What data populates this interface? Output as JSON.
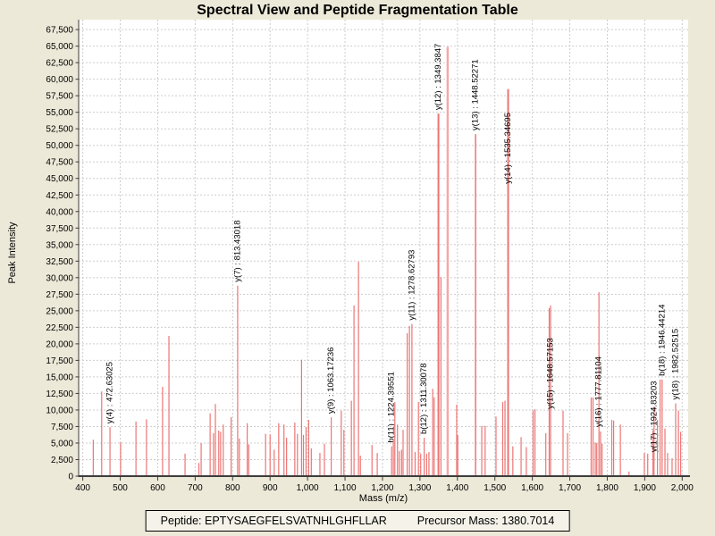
{
  "title": "Spectral View and Peptide Fragmentation Table",
  "colors": {
    "page_background": "#ece9d8",
    "plot_background": "#ffffff",
    "grid": "#cdcdcd",
    "axis": "#3c3c3c",
    "peak_default": "#ec7575",
    "peak_light": "#f5a8a8"
  },
  "footer": {
    "peptide": "Peptide: EPTYSAEGFELSVATNHLGHFLLAR",
    "precursor_mass": "Precursor Mass: 1380.7014"
  },
  "chart_data": {
    "type": "bar",
    "title": "Spectral View and Peptide Fragmentation Table",
    "xlabel": "Mass (m/z)",
    "ylabel": "Peak Intensity",
    "xlim": [
      389,
      2016
    ],
    "ylim": [
      0,
      69000
    ],
    "x_tick_min": 400,
    "x_tick_max": 2000,
    "x_tick_step": 100,
    "y_tick_min": 0,
    "y_tick_max": 67500,
    "y_tick_step": 2500,
    "grid": true,
    "legend": "none",
    "peaks": [
      {
        "mz": 428,
        "i": 5500
      },
      {
        "mz": 450.5,
        "i": 12800
      },
      {
        "mz": 472.63025,
        "i": 7400,
        "label": "y(4) : 472.63025"
      },
      {
        "mz": 501,
        "i": 5100
      },
      {
        "mz": 542,
        "i": 8250
      },
      {
        "mz": 570,
        "i": 8600
      },
      {
        "mz": 613,
        "i": 13500
      },
      {
        "mz": 630,
        "i": 21200
      },
      {
        "mz": 673,
        "i": 3400
      },
      {
        "mz": 710,
        "i": 2000
      },
      {
        "mz": 716,
        "i": 5000
      },
      {
        "mz": 740,
        "i": 9500
      },
      {
        "mz": 749,
        "i": 6500
      },
      {
        "mz": 754,
        "i": 10900
      },
      {
        "mz": 763,
        "i": 6900
      },
      {
        "mz": 768,
        "i": 6700
      },
      {
        "mz": 775,
        "i": 7800
      },
      {
        "mz": 796,
        "i": 8900
      },
      {
        "mz": 813.43018,
        "i": 28800,
        "label": "y(7) : 813.43018"
      },
      {
        "mz": 818,
        "i": 5700
      },
      {
        "mz": 839,
        "i": 8000
      },
      {
        "mz": 843,
        "i": 4800
      },
      {
        "mz": 888,
        "i": 6400
      },
      {
        "mz": 900,
        "i": 6300
      },
      {
        "mz": 911,
        "i": 4000
      },
      {
        "mz": 923,
        "i": 8000
      },
      {
        "mz": 937,
        "i": 7800
      },
      {
        "mz": 944,
        "i": 5800
      },
      {
        "mz": 966,
        "i": 8100
      },
      {
        "mz": 973,
        "i": 6400
      },
      {
        "mz": 984,
        "i": 17600
      },
      {
        "mz": 989,
        "i": 6250
      },
      {
        "mz": 996,
        "i": 7400
      },
      {
        "mz": 1003,
        "i": 8500
      },
      {
        "mz": 1010,
        "i": 4200
      },
      {
        "mz": 1033,
        "i": 3500
      },
      {
        "mz": 1045,
        "i": 4900
      },
      {
        "mz": 1063.17236,
        "i": 8900,
        "label": "y(9) : 1063.17236"
      },
      {
        "mz": 1090,
        "i": 9900
      },
      {
        "mz": 1097,
        "i": 7000
      },
      {
        "mz": 1117,
        "i": 11400
      },
      {
        "mz": 1124,
        "i": 25800
      },
      {
        "mz": 1136,
        "i": 32400
      },
      {
        "mz": 1141,
        "i": 3100
      },
      {
        "mz": 1172,
        "i": 4700
      },
      {
        "mz": 1186,
        "i": 3500
      },
      {
        "mz": 1224.39551,
        "i": 4500,
        "label": "b(11) : 1224.39551"
      },
      {
        "mz": 1229,
        "i": 5400
      },
      {
        "mz": 1233,
        "i": 11200
      },
      {
        "mz": 1240,
        "i": 7800
      },
      {
        "mz": 1245,
        "i": 3800
      },
      {
        "mz": 1251,
        "i": 4000
      },
      {
        "mz": 1255,
        "i": 7000
      },
      {
        "mz": 1266,
        "i": 21600
      },
      {
        "mz": 1272,
        "i": 22700
      },
      {
        "mz": 1278.62793,
        "i": 23000,
        "label": "y(11) : 1278.62793"
      },
      {
        "mz": 1287,
        "i": 3650
      },
      {
        "mz": 1296,
        "i": 11200
      },
      {
        "mz": 1302,
        "i": 3400
      },
      {
        "mz": 1311.30078,
        "i": 5800,
        "label": "b(12) : 1311.30078"
      },
      {
        "mz": 1318,
        "i": 3400
      },
      {
        "mz": 1324,
        "i": 3650
      },
      {
        "mz": 1334,
        "i": 13200
      },
      {
        "mz": 1338,
        "i": 11900
      },
      {
        "mz": 1349.3847,
        "i": 54800,
        "label": "y(12) : 1349.3847",
        "w": 2
      },
      {
        "mz": 1356,
        "i": 30100
      },
      {
        "mz": 1374,
        "i": 64900,
        "w": 2.5,
        "shade": "light"
      },
      {
        "mz": 1398,
        "i": 10800
      },
      {
        "mz": 1401,
        "i": 6200
      },
      {
        "mz": 1448.52271,
        "i": 51700,
        "label": "y(13) : 1448.52271",
        "w": 1.5
      },
      {
        "mz": 1465,
        "i": 7600
      },
      {
        "mz": 1474,
        "i": 7600
      },
      {
        "mz": 1503,
        "i": 9000
      },
      {
        "mz": 1521,
        "i": 11200
      },
      {
        "mz": 1527,
        "i": 11400
      },
      {
        "mz": 1535.34695,
        "i": 58500,
        "label": "y(14) : 1535.34695",
        "w": 2,
        "dy": 110
      },
      {
        "mz": 1548,
        "i": 4500
      },
      {
        "mz": 1570,
        "i": 5900
      },
      {
        "mz": 1584,
        "i": 4400
      },
      {
        "mz": 1602,
        "i": 9900
      },
      {
        "mz": 1607,
        "i": 10100
      },
      {
        "mz": 1636,
        "i": 6500
      },
      {
        "mz": 1645,
        "i": 25400
      },
      {
        "mz": 1648.57153,
        "i": 25800,
        "label": "y(15) : 1648.57153",
        "dy": 120
      },
      {
        "mz": 1682,
        "i": 9900
      },
      {
        "mz": 1694,
        "i": 6500
      },
      {
        "mz": 1757,
        "i": 11900
      },
      {
        "mz": 1762,
        "i": 11900
      },
      {
        "mz": 1768,
        "i": 5100
      },
      {
        "mz": 1772,
        "i": 5000
      },
      {
        "mz": 1777.81104,
        "i": 27800,
        "label": "y(16) : 1777.81104",
        "dy": 155
      },
      {
        "mz": 1782,
        "i": 6750
      },
      {
        "mz": 1786,
        "i": 4900
      },
      {
        "mz": 1812,
        "i": 8500
      },
      {
        "mz": 1817,
        "i": 8400
      },
      {
        "mz": 1835,
        "i": 7800
      },
      {
        "mz": 1858,
        "i": 700
      },
      {
        "mz": 1899,
        "i": 3500
      },
      {
        "mz": 1908,
        "i": 3400
      },
      {
        "mz": 1922,
        "i": 6900
      },
      {
        "mz": 1924.83203,
        "i": 10500,
        "label": "y(17) : 1924.83203",
        "dy": 55
      },
      {
        "mz": 1934,
        "i": 8500
      },
      {
        "mz": 1941,
        "i": 14600
      },
      {
        "mz": 1946.44214,
        "i": 14600,
        "label": "b(18) : 1946.44214"
      },
      {
        "mz": 1954,
        "i": 7200
      },
      {
        "mz": 1961,
        "i": 3500
      },
      {
        "mz": 1973,
        "i": 2700
      },
      {
        "mz": 1982.52515,
        "i": 11000,
        "label": "y(18) : 1982.52515"
      },
      {
        "mz": 1990,
        "i": 9900
      },
      {
        "mz": 1996,
        "i": 6700
      }
    ]
  }
}
